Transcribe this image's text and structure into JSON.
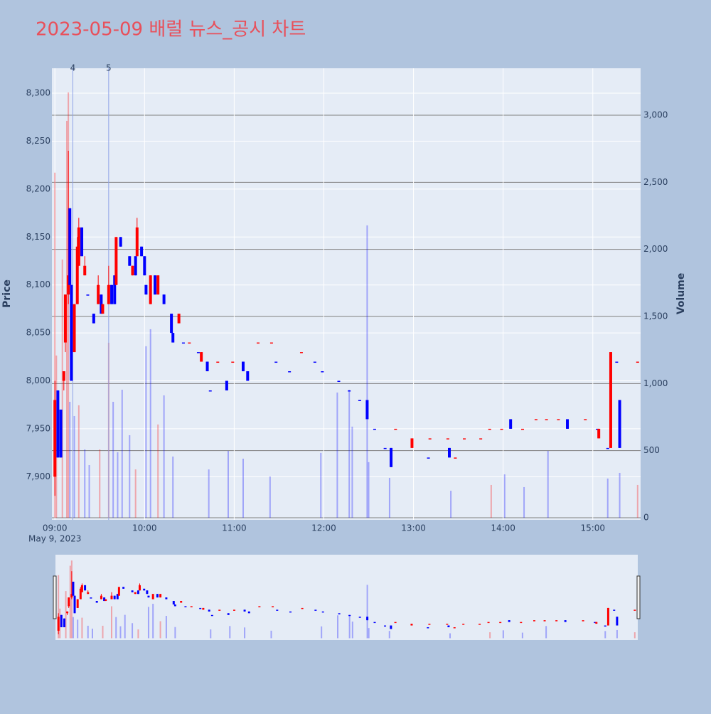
{
  "chart_data": {
    "type": "candlestick",
    "title": "2023-05-09 배럴 뉴스_공시 차트",
    "y_label": "Price",
    "y2_label": "Volume",
    "x_date_label": "May 9, 2023",
    "increasing_color": "#ff0000",
    "decreasing_color": "#0000ff",
    "xlim": [
      "08:58",
      "15:32"
    ],
    "xticks": [
      "09:00",
      "10:00",
      "11:00",
      "12:00",
      "13:00",
      "14:00",
      "15:00"
    ],
    "ylim": [
      7855,
      8326
    ],
    "yticks": [
      {
        "value": 7900,
        "label": "7,900"
      },
      {
        "value": 7950,
        "label": "7,950"
      },
      {
        "value": 8000,
        "label": "8,000"
      },
      {
        "value": 8050,
        "label": "8,050"
      },
      {
        "value": 8100,
        "label": "8,100"
      },
      {
        "value": 8150,
        "label": "8,150"
      },
      {
        "value": 8200,
        "label": "8,200"
      },
      {
        "value": 8250,
        "label": "8,250"
      },
      {
        "value": 8300,
        "label": "8,300"
      }
    ],
    "y2lim": [
      -16,
      3350
    ],
    "y2ticks": [
      0,
      500,
      {
        "value": 1000,
        "label": "1,000"
      },
      {
        "value": 1500,
        "label": "1,500"
      },
      {
        "value": 2000,
        "label": "2,000"
      },
      {
        "value": 2500,
        "label": "2,500"
      },
      {
        "value": 3000,
        "label": "3,000"
      }
    ],
    "x": [
      "09:00",
      "09:02",
      "09:04",
      "09:06",
      "09:07",
      "09:09",
      "09:10",
      "09:11",
      "09:13",
      "09:15",
      "09:16",
      "09:18",
      "09:20",
      "09:22",
      "09:26",
      "09:29",
      "09:31",
      "09:32",
      "09:36",
      "09:38",
      "09:40",
      "09:41",
      "09:44",
      "09:50",
      "09:52",
      "09:54",
      "09:55",
      "09:58",
      "10:00",
      "10:01",
      "10:04",
      "10:07",
      "10:09",
      "10:13",
      "10:18",
      "10:19",
      "10:23",
      "10:26",
      "10:30",
      "10:36",
      "10:38",
      "10:42",
      "10:44",
      "10:49",
      "10:55",
      "10:59",
      "11:06",
      "11:09",
      "11:16",
      "11:25",
      "11:28",
      "11:37",
      "11:45",
      "11:54",
      "11:59",
      "12:10",
      "12:17",
      "12:24",
      "12:29",
      "12:34",
      "12:41",
      "12:45",
      "12:48",
      "12:59",
      "13:10",
      "13:11",
      "13:23",
      "13:24",
      "13:28",
      "13:34",
      "13:45",
      "13:51",
      "13:59",
      "14:05",
      "14:13",
      "14:22",
      "14:29",
      "14:37",
      "14:43",
      "14:55",
      "15:03",
      "15:04",
      "15:10",
      "15:12",
      "15:16",
      "15:18",
      "15:30"
    ],
    "open": [
      7900,
      7990,
      7970,
      8000,
      8040,
      8090,
      8180,
      8100,
      8030,
      8080,
      8120,
      8160,
      8110,
      8090,
      8070,
      8080,
      8090,
      8070,
      8080,
      8100,
      8110,
      8100,
      8150,
      8130,
      8110,
      8130,
      8130,
      8140,
      8130,
      8100,
      8080,
      8110,
      8090,
      8090,
      8070,
      8050,
      8060,
      8040,
      8040,
      8030,
      8020,
      8020,
      7990,
      8020,
      8000,
      8020,
      8020,
      8010,
      8040,
      8040,
      8020,
      8010,
      8030,
      8020,
      8010,
      8000,
      7990,
      7980,
      7980,
      7950,
      7930,
      7930,
      7950,
      7930,
      7920,
      7940,
      7940,
      7930,
      7920,
      7940,
      7940,
      7950,
      7950,
      7960,
      7950,
      7960,
      7960,
      7960,
      7960,
      7960,
      7950,
      7940,
      7930,
      7930,
      8020,
      7980,
      8020
    ],
    "high": [
      8000,
      7990,
      7970,
      8010,
      8090,
      8240,
      8180,
      8100,
      8080,
      8150,
      8170,
      8160,
      8130,
      8090,
      8070,
      8110,
      8090,
      8080,
      8120,
      8100,
      8110,
      8150,
      8150,
      8130,
      8120,
      8130,
      8170,
      8140,
      8130,
      8100,
      8110,
      8110,
      8110,
      8090,
      8070,
      8050,
      8070,
      8040,
      8040,
      8030,
      8030,
      8020,
      7990,
      8020,
      8000,
      8020,
      8020,
      8010,
      8040,
      8040,
      8020,
      8010,
      8030,
      8020,
      8010,
      8000,
      7990,
      7980,
      7980,
      7950,
      7930,
      7930,
      7950,
      7940,
      7920,
      7940,
      7940,
      7930,
      7920,
      7940,
      7940,
      7950,
      7950,
      7960,
      7950,
      7960,
      7960,
      7960,
      7960,
      7960,
      7950,
      7950,
      7930,
      8030,
      8020,
      7980,
      8020
    ],
    "low": [
      7880,
      7920,
      7920,
      7990,
      8030,
      8080,
      8100,
      8000,
      8030,
      8080,
      8120,
      8130,
      8110,
      8090,
      8060,
      8080,
      8070,
      8070,
      8080,
      8080,
      8080,
      8100,
      8140,
      8120,
      8110,
      8110,
      8130,
      8130,
      8110,
      8090,
      8080,
      8090,
      8090,
      8080,
      8050,
      8040,
      8060,
      8040,
      8040,
      8030,
      8020,
      8010,
      7990,
      8020,
      7990,
      8020,
      8010,
      8000,
      8040,
      8040,
      8020,
      8010,
      8030,
      8020,
      8010,
      8000,
      7990,
      7980,
      7960,
      7950,
      7930,
      7910,
      7950,
      7930,
      7920,
      7940,
      7940,
      7920,
      7920,
      7940,
      7940,
      7950,
      7950,
      7950,
      7950,
      7960,
      7960,
      7960,
      7950,
      7960,
      7950,
      7940,
      7930,
      7930,
      8020,
      7930,
      8020
    ],
    "close": [
      7980,
      7920,
      7920,
      8010,
      8090,
      8110,
      8100,
      8000,
      8080,
      8140,
      8160,
      8130,
      8120,
      8090,
      8060,
      8100,
      8070,
      8080,
      8100,
      8080,
      8080,
      8150,
      8140,
      8120,
      8120,
      8110,
      8160,
      8130,
      8110,
      8090,
      8110,
      8090,
      8110,
      8080,
      8050,
      8040,
      8070,
      8040,
      8040,
      8030,
      8030,
      8010,
      7990,
      8020,
      7990,
      8020,
      8010,
      8000,
      8040,
      8040,
      8020,
      8010,
      8030,
      8020,
      8010,
      8000,
      7990,
      7980,
      7960,
      7950,
      7930,
      7910,
      7950,
      7940,
      7920,
      7940,
      7940,
      7920,
      7920,
      7940,
      7940,
      7950,
      7950,
      7950,
      7950,
      7960,
      7960,
      7960,
      7950,
      7960,
      7950,
      7950,
      7930,
      8030,
      8020,
      7930,
      8020
    ],
    "volume": {
      "axis": "y2",
      "x": [
        "09:00",
        "09:01",
        "09:05",
        "09:08",
        "09:09",
        "09:10",
        "09:13",
        "09:16",
        "09:20",
        "09:23",
        "09:30",
        "09:36",
        "09:39",
        "09:42",
        "09:45",
        "09:50",
        "09:54",
        "10:01",
        "10:04",
        "10:09",
        "10:13",
        "10:19",
        "10:43",
        "10:56",
        "11:06",
        "11:24",
        "11:58",
        "12:09",
        "12:17",
        "12:19",
        "12:29",
        "12:30",
        "12:44",
        "13:25",
        "13:52",
        "14:01",
        "14:14",
        "14:30",
        "15:10",
        "15:18",
        "15:30"
      ],
      "values": [
        2572,
        1209,
        1925,
        2958,
        3170,
        864,
        758,
        838,
        509,
        392,
        509,
        1304,
        864,
        488,
        954,
        615,
        360,
        1278,
        1405,
        695,
        912,
        456,
        360,
        498,
        440,
        307,
        483,
        933,
        954,
        679,
        2179,
        414,
        297,
        201,
        244,
        323,
        228,
        498,
        292,
        334,
        244
      ],
      "colors": [
        "rgba(255,0,0,0.3)",
        "rgba(255,0,0,0.3)",
        "rgba(255,0,0,0.3)",
        "rgba(255,0,0,0.3)",
        "rgba(255,0,0,0.3)",
        "rgba(0,0,255,0.3)",
        "rgba(0,0,255,0.3)",
        "rgba(255,0,0,0.3)",
        "rgba(0,0,255,0.3)",
        "rgba(0,0,255,0.3)",
        "rgba(255,0,0,0.3)",
        "rgba(255,0,0,0.3)",
        "rgba(0,0,255,0.3)",
        "rgba(0,0,255,0.3)",
        "rgba(0,0,255,0.3)",
        "rgba(0,0,255,0.3)",
        "rgba(255,0,0,0.3)",
        "rgba(0,0,255,0.3)",
        "rgba(0,0,255,0.3)",
        "rgba(255,0,0,0.3)",
        "rgba(0,0,255,0.3)",
        "rgba(0,0,255,0.3)",
        "rgba(0,0,255,0.3)",
        "rgba(0,0,255,0.3)",
        "rgba(0,0,255,0.3)",
        "rgba(0,0,255,0.3)",
        "rgba(0,0,255,0.3)",
        "rgba(0,0,255,0.3)",
        "rgba(0,0,255,0.3)",
        "rgba(0,0,255,0.3)",
        "rgba(0,0,255,0.3)",
        "rgba(0,0,255,0.3)",
        "rgba(0,0,255,0.3)",
        "rgba(0,0,255,0.3)",
        "rgba(255,0,0,0.3)",
        "rgba(0,0,255,0.3)",
        "rgba(0,0,255,0.3)",
        "rgba(0,0,255,0.3)",
        "rgba(0,0,255,0.3)",
        "rgba(0,0,255,0.3)",
        "rgba(255,0,0,0.3)"
      ]
    },
    "annotations": [
      {
        "x": "09:12",
        "text": "4"
      },
      {
        "x": "09:36",
        "text": "5"
      }
    ],
    "rangeslider": true
  }
}
